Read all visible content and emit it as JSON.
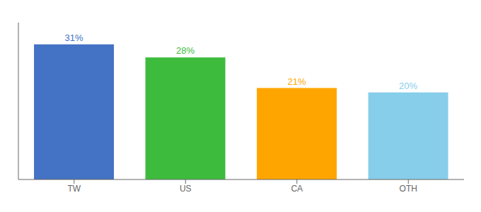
{
  "chart_data": {
    "type": "bar",
    "categories": [
      "TW",
      "US",
      "CA",
      "OTH"
    ],
    "values": [
      31,
      28,
      21,
      20
    ],
    "value_labels": [
      "31%",
      "28%",
      "21%",
      "20%"
    ],
    "colors": [
      "#4472C4",
      "#3DBB3D",
      "#FFA500",
      "#87CEEB"
    ],
    "ylim": [
      0,
      36
    ],
    "data_labels": true,
    "tick_labels": "x"
  }
}
